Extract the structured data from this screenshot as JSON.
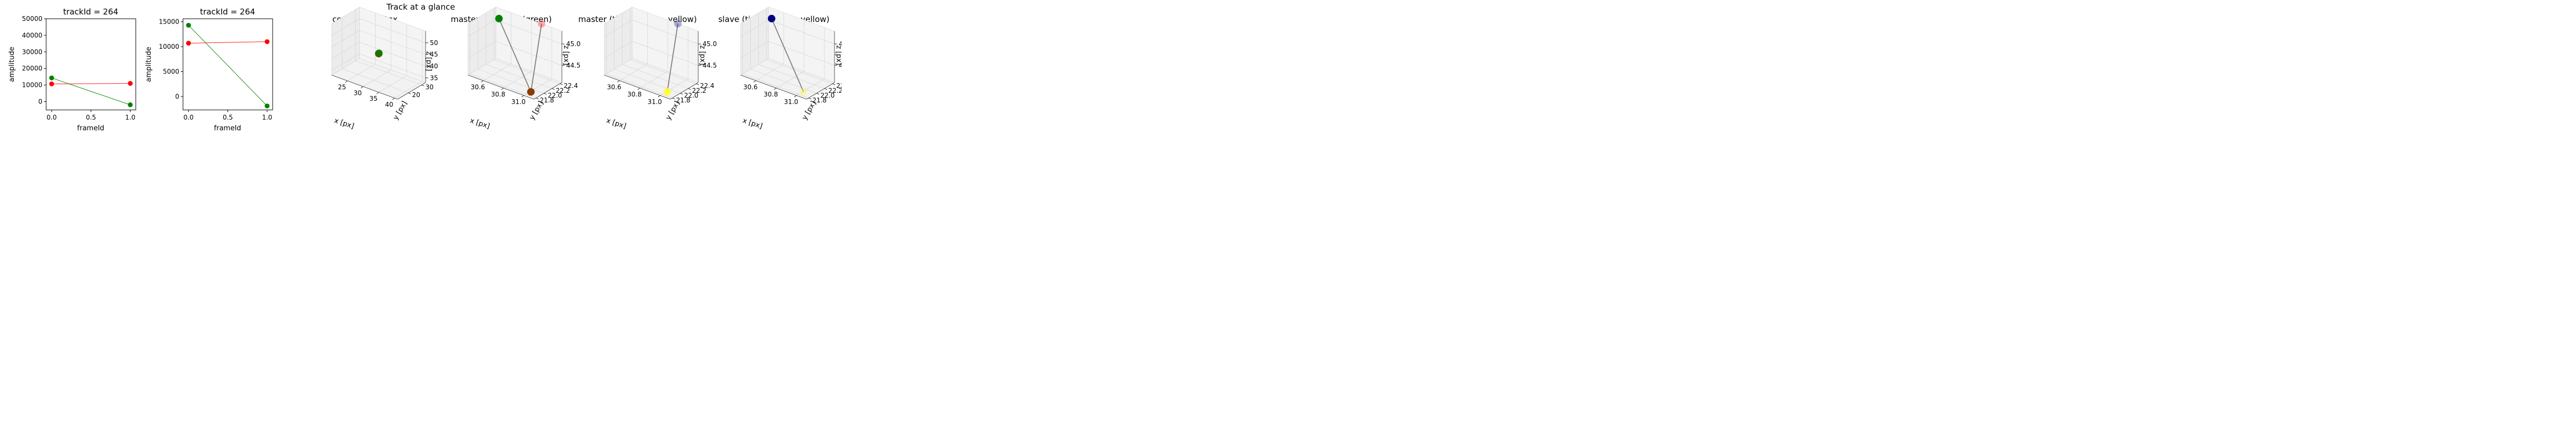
{
  "figure": {
    "suptitle": "Track at a glance"
  },
  "colors": {
    "master": "#ff0000",
    "slave": "#008000",
    "time_start": "#000080",
    "time_end": "#ffff33",
    "connector": "#808080",
    "pane": "#f2f2f2"
  },
  "chart_data": [
    {
      "type": "line",
      "title": "trackId = 264",
      "xlabel": "frameId",
      "ylabel": "amplitude",
      "xlim": [
        -0.07,
        1.07
      ],
      "ylim": [
        -5000,
        50000
      ],
      "xticks": [
        0.0,
        0.5,
        1.0
      ],
      "xtick_labels": [
        "0.0",
        "0.5",
        "1.0"
      ],
      "yticks": [
        0,
        10000,
        20000,
        30000,
        40000,
        50000
      ],
      "ytick_labels": [
        "0",
        "10000",
        "20000",
        "30000",
        "40000",
        "50000"
      ],
      "series": [
        {
          "color_key": "master",
          "x": [
            0,
            1
          ],
          "values": [
            10700,
            11000
          ]
        },
        {
          "color_key": "slave",
          "x": [
            0,
            1
          ],
          "values": [
            14300,
            -1900
          ]
        }
      ]
    },
    {
      "type": "line",
      "title": "trackId = 264",
      "xlabel": "frameId",
      "ylabel": "amplitude",
      "xlim": [
        -0.07,
        1.07
      ],
      "ylim": [
        -2700,
        15600
      ],
      "xticks": [
        0.0,
        0.5,
        1.0
      ],
      "xtick_labels": [
        "0.0",
        "0.5",
        "1.0"
      ],
      "yticks": [
        0,
        5000,
        10000,
        15000
      ],
      "ytick_labels": [
        "0",
        "5000",
        "10000",
        "15000"
      ],
      "series": [
        {
          "color_key": "master",
          "x": [
            0,
            1
          ],
          "values": [
            10700,
            11000
          ]
        },
        {
          "color_key": "slave",
          "x": [
            0,
            1
          ],
          "values": [
            14300,
            -1900
          ]
        }
      ]
    },
    {
      "type": "scatter3d",
      "title": "context +- 10px",
      "xlabel": "x [px]",
      "ylabel": "y [px]",
      "zlabel": "z [px]",
      "xlim": [
        20,
        41
      ],
      "ylim": [
        12,
        33
      ],
      "zlim": [
        33,
        55
      ],
      "xticks": [
        25,
        30,
        35,
        40
      ],
      "xtick_labels": [
        "25",
        "30",
        "35",
        "40"
      ],
      "yticks": [
        20,
        30
      ],
      "ytick_labels": [
        "20",
        "30"
      ],
      "zticks": [
        35,
        40,
        45,
        50
      ],
      "ztick_labels": [
        "35",
        "40",
        "45",
        "50"
      ],
      "points": [
        {
          "x": 30.7,
          "y": 22.1,
          "z": 44.0,
          "color_key": "master",
          "alpha": 0.9,
          "size": 7
        },
        {
          "x": 30.8,
          "y": 22.0,
          "z": 44.2,
          "color_key": "slave",
          "alpha": 0.9,
          "size": 7
        }
      ],
      "segments": []
    },
    {
      "type": "scatter3d",
      "title": "master(red) slave(green)",
      "xlabel": "x [px]",
      "ylabel": "y [px]",
      "zlabel": "z [px]",
      "xlim": [
        30.45,
        31.1
      ],
      "ylim": [
        21.75,
        22.45
      ],
      "zlim": [
        44.1,
        45.3
      ],
      "xticks": [
        30.6,
        30.8,
        31.0
      ],
      "xtick_labels": [
        "30.6",
        "30.8",
        "31.0"
      ],
      "yticks": [
        21.8,
        22.0,
        22.2,
        22.4
      ],
      "ytick_labels": [
        "21.8",
        "22.0",
        "22.2",
        "22.4"
      ],
      "zticks": [
        44.5,
        45.0
      ],
      "ztick_labels": [
        "44.5",
        "45.0"
      ],
      "points": [
        {
          "x": 30.5,
          "y": 22.4,
          "z": 45.1,
          "color_key": "slave",
          "alpha": 1.0,
          "size": 7
        },
        {
          "x": 31.05,
          "y": 21.8,
          "z": 44.2,
          "color_key": "slave",
          "alpha": 1.0,
          "size": 7
        },
        {
          "x": 31.05,
          "y": 21.8,
          "z": 44.2,
          "color_key": "master",
          "alpha": 0.55,
          "size": 7
        },
        {
          "x": 30.9,
          "y": 22.45,
          "z": 45.3,
          "color_key": "master",
          "alpha": 0.3,
          "size": 7
        }
      ],
      "segments": [
        {
          "from": [
            30.5,
            22.4,
            45.1
          ],
          "to": [
            31.05,
            21.8,
            44.2
          ]
        },
        {
          "from": [
            30.9,
            22.45,
            45.3
          ],
          "to": [
            31.05,
            21.8,
            44.2
          ]
        }
      ]
    },
    {
      "type": "scatter3d",
      "title": "master (time: blue -> yellow)",
      "xlabel": "x [px]",
      "ylabel": "y [px]",
      "zlabel": "z [px]",
      "xlim": [
        30.45,
        31.1
      ],
      "ylim": [
        21.75,
        22.45
      ],
      "zlim": [
        44.1,
        45.3
      ],
      "xticks": [
        30.6,
        30.8,
        31.0
      ],
      "xtick_labels": [
        "30.6",
        "30.8",
        "31.0"
      ],
      "yticks": [
        21.8,
        22.0,
        22.2,
        22.4
      ],
      "ytick_labels": [
        "21.8",
        "22.0",
        "22.2",
        "22.4"
      ],
      "zticks": [
        44.5,
        45.0
      ],
      "ztick_labels": [
        "44.5",
        "45.0"
      ],
      "points": [
        {
          "x": 30.9,
          "y": 22.45,
          "z": 45.3,
          "color_key": "time_start",
          "alpha": 0.3,
          "size": 7
        },
        {
          "x": 31.05,
          "y": 21.8,
          "z": 44.2,
          "color_key": "time_end",
          "alpha": 0.9,
          "size": 7
        }
      ],
      "segments": [
        {
          "from": [
            30.9,
            22.45,
            45.3
          ],
          "to": [
            31.05,
            21.8,
            44.2
          ]
        }
      ]
    },
    {
      "type": "scatter3d",
      "title": "slave (time: blue -> yellow)",
      "xlabel": "x [px]",
      "ylabel": "y [px]",
      "zlabel": "z [px]",
      "xlim": [
        30.45,
        31.1
      ],
      "ylim": [
        21.75,
        22.45
      ],
      "zlim": [
        44.1,
        45.3
      ],
      "xticks": [
        30.6,
        30.8,
        31.0
      ],
      "xtick_labels": [
        "30.6",
        "30.8",
        "31.0"
      ],
      "yticks": [
        21.8,
        22.0,
        22.2,
        22.4
      ],
      "ytick_labels": [
        "21.8",
        "22.0",
        "22.2",
        "22.4"
      ],
      "zticks": [
        44.5,
        45.0
      ],
      "ztick_labels": [
        "44.5",
        "45.0"
      ],
      "points": [
        {
          "x": 30.5,
          "y": 22.4,
          "z": 45.1,
          "color_key": "time_start",
          "alpha": 1.0,
          "size": 7
        },
        {
          "x": 31.05,
          "y": 21.8,
          "z": 44.2,
          "color_key": "time_end",
          "alpha": 0.35,
          "size": 7
        }
      ],
      "segments": [
        {
          "from": [
            30.5,
            22.4,
            45.1
          ],
          "to": [
            31.05,
            21.8,
            44.2
          ]
        }
      ]
    }
  ]
}
